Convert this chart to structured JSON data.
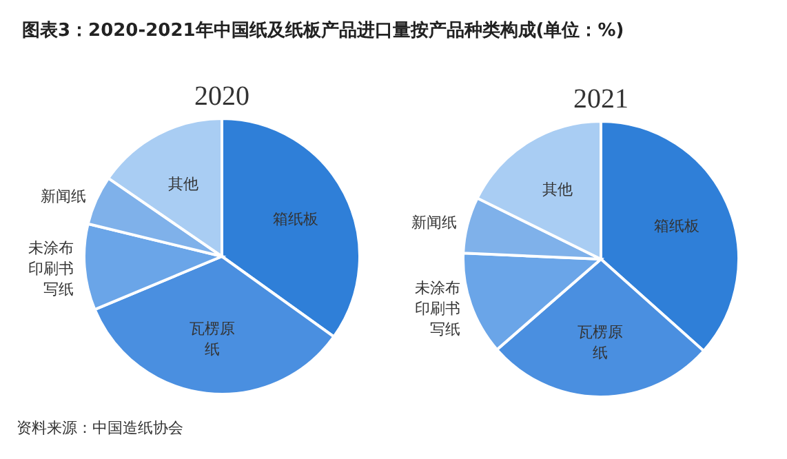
{
  "chart_data": [
    {
      "type": "pie",
      "title": "2020",
      "categories": [
        "箱纸板",
        "瓦楞原纸",
        "未涂布印刷书写纸",
        "新闻纸",
        "其他"
      ],
      "values": [
        34.9,
        33.8,
        10.1,
        5.8,
        15.4
      ],
      "colors": [
        "#2f7fd8",
        "#4a8fe0",
        "#6aa5e8",
        "#7fb1ea",
        "#a9cdf3"
      ],
      "annotations": [
        "图表3：2020-2021年中国纸及纸板产品进口量按产品种类构成(单位：%)",
        "资料来源：中国造纸协会"
      ]
    },
    {
      "type": "pie",
      "title": "2021",
      "categories": [
        "箱纸板",
        "瓦楞原纸",
        "未涂布印刷书写纸",
        "新闻纸",
        "其他"
      ],
      "values": [
        36.6,
        27.0,
        12.1,
        6.6,
        17.7
      ],
      "colors": [
        "#2f7fd8",
        "#4a8fe0",
        "#6aa5e8",
        "#7fb1ea",
        "#a9cdf3"
      ]
    }
  ]
}
